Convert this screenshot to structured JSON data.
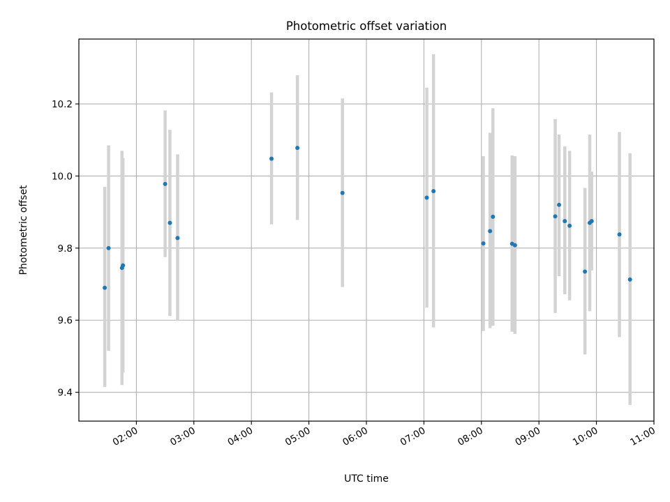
{
  "chart_data": {
    "type": "scatter",
    "title": "Photometric offset variation",
    "xlabel": "UTC time",
    "ylabel": "Photometric offset",
    "xlim": [
      "01:00",
      "11:00"
    ],
    "ylim": [
      9.32,
      10.38
    ],
    "grid": true,
    "x_tick_labels": [
      "02:00",
      "03:00",
      "04:00",
      "05:00",
      "06:00",
      "07:00",
      "08:00",
      "09:00",
      "10:00",
      "11:00"
    ],
    "y_tick_labels": [
      "9.4",
      "9.6",
      "9.8",
      "10.0",
      "10.2"
    ],
    "colors": {
      "point": "#1f77b4",
      "errorbar": "#d3d3d3",
      "grid": "#b0b0b0"
    },
    "points": [
      {
        "x": "01:27",
        "y": 9.69,
        "err_low": 9.415,
        "err_high": 9.97
      },
      {
        "x": "01:31",
        "y": 9.8,
        "err_low": 9.515,
        "err_high": 10.085
      },
      {
        "x": "01:45",
        "y": 9.745,
        "err_low": 9.42,
        "err_high": 10.07
      },
      {
        "x": "01:46",
        "y": 9.752,
        "err_low": 9.455,
        "err_high": 10.05
      },
      {
        "x": "02:30",
        "y": 9.978,
        "err_low": 9.775,
        "err_high": 10.182
      },
      {
        "x": "02:35",
        "y": 9.87,
        "err_low": 9.612,
        "err_high": 10.128
      },
      {
        "x": "02:43",
        "y": 9.828,
        "err_low": 9.598,
        "err_high": 10.06
      },
      {
        "x": "04:21",
        "y": 10.048,
        "err_low": 9.866,
        "err_high": 10.232
      },
      {
        "x": "04:48",
        "y": 10.078,
        "err_low": 9.878,
        "err_high": 10.28
      },
      {
        "x": "05:35",
        "y": 9.953,
        "err_low": 9.692,
        "err_high": 10.215
      },
      {
        "x": "07:03",
        "y": 9.94,
        "err_low": 9.635,
        "err_high": 10.245
      },
      {
        "x": "07:10",
        "y": 9.958,
        "err_low": 9.58,
        "err_high": 10.338
      },
      {
        "x": "08:02",
        "y": 9.813,
        "err_low": 9.57,
        "err_high": 10.055
      },
      {
        "x": "08:09",
        "y": 9.847,
        "err_low": 9.578,
        "err_high": 10.12
      },
      {
        "x": "08:12",
        "y": 9.887,
        "err_low": 9.585,
        "err_high": 10.188
      },
      {
        "x": "08:32",
        "y": 9.812,
        "err_low": 9.568,
        "err_high": 10.057
      },
      {
        "x": "08:35",
        "y": 9.808,
        "err_low": 9.562,
        "err_high": 10.055
      },
      {
        "x": "09:17",
        "y": 9.888,
        "err_low": 9.62,
        "err_high": 10.158
      },
      {
        "x": "09:21",
        "y": 9.92,
        "err_low": 9.722,
        "err_high": 10.115
      },
      {
        "x": "09:27",
        "y": 9.875,
        "err_low": 9.672,
        "err_high": 10.082
      },
      {
        "x": "09:32",
        "y": 9.862,
        "err_low": 9.655,
        "err_high": 10.07
      },
      {
        "x": "09:48",
        "y": 9.735,
        "err_low": 9.505,
        "err_high": 9.967
      },
      {
        "x": "09:53",
        "y": 9.87,
        "err_low": 9.625,
        "err_high": 10.115
      },
      {
        "x": "09:55",
        "y": 9.875,
        "err_low": 9.738,
        "err_high": 10.012
      },
      {
        "x": "10:24",
        "y": 9.838,
        "err_low": 9.553,
        "err_high": 10.122
      },
      {
        "x": "10:35",
        "y": 9.713,
        "err_low": 9.365,
        "err_high": 10.063
      }
    ]
  }
}
